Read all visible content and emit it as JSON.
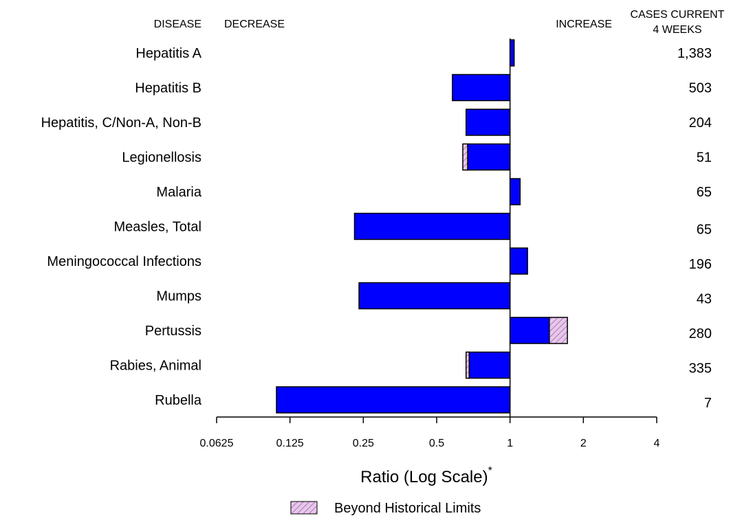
{
  "headers": {
    "disease": "DISEASE",
    "decrease": "DECREASE",
    "increase": "INCREASE",
    "cases_line1": "CASES CURRENT",
    "cases_line2": "4 WEEKS"
  },
  "chart_data": {
    "type": "bar",
    "orientation": "horizontal",
    "x_scale": "log2",
    "xlim": [
      0.0625,
      4
    ],
    "baseline": 1,
    "xlabel": "Ratio (Log Scale)",
    "xlabel_superscript": "*",
    "x_ticks": [
      {
        "value": 0.0625,
        "label": "0.0625"
      },
      {
        "value": 0.125,
        "label": "0.125"
      },
      {
        "value": 0.25,
        "label": "0.25"
      },
      {
        "value": 0.5,
        "label": "0.5"
      },
      {
        "value": 1,
        "label": "1"
      },
      {
        "value": 2,
        "label": "2"
      },
      {
        "value": 4,
        "label": "4"
      }
    ],
    "legend": {
      "label": "Beyond Historical Limits",
      "position": "bottom-center"
    },
    "colors": {
      "bar": "#0000ff",
      "beyond": "#e6c8ea",
      "hatch": "#a060a8"
    },
    "categories": [
      "Hepatitis A",
      "Hepatitis B",
      "Hepatitis, C/Non-A, Non-B",
      "Legionellosis",
      "Malaria",
      "Measles, Total",
      "Meningococcal Infections",
      "Mumps",
      "Pertussis",
      "Rabies, Animal",
      "Rubella"
    ],
    "cases": [
      "1,383",
      "503",
      "204",
      "51",
      "65",
      "65",
      "196",
      "43",
      "280",
      "335",
      "7"
    ],
    "ratio": [
      1.04,
      0.58,
      0.66,
      0.64,
      1.1,
      0.23,
      1.18,
      0.24,
      1.72,
      0.66,
      0.11
    ],
    "historical_limit": [
      null,
      null,
      null,
      0.67,
      null,
      null,
      null,
      null,
      1.45,
      0.68,
      null
    ]
  }
}
